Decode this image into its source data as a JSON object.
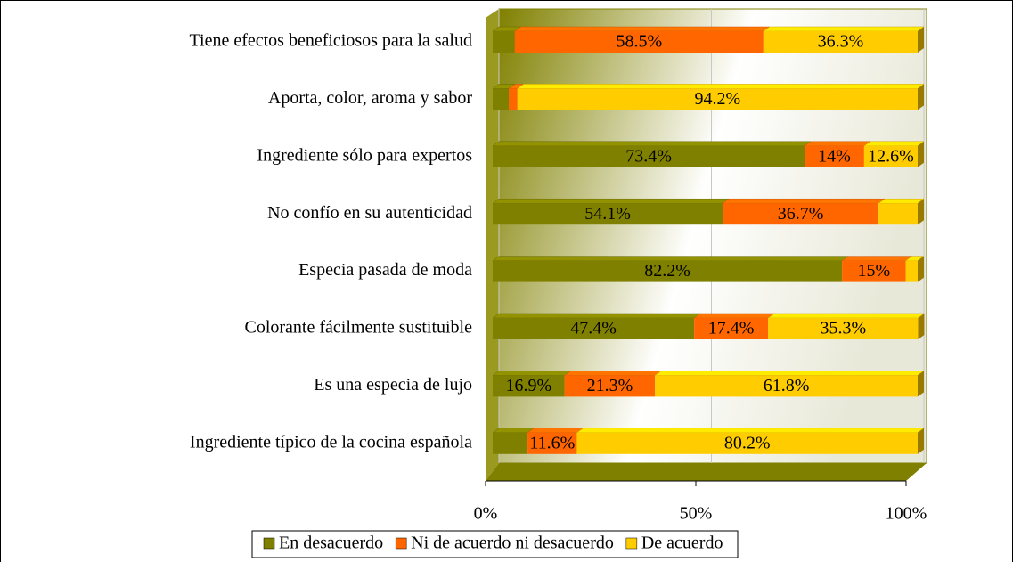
{
  "chart_data": {
    "type": "bar",
    "orientation": "horizontal",
    "stacked": true,
    "categories": [
      "Tiene efectos beneficiosos para la salud",
      "Aporta, color, aroma y sabor",
      "Ingrediente sólo para expertos",
      "No confío en su autenticidad",
      "Especia pasada de moda",
      "Colorante fácilmente sustituible",
      "Es una especia de lujo",
      "Ingrediente típico de la cocina española"
    ],
    "series": [
      {
        "name": "En desacuerdo",
        "color": "#808000",
        "values": [
          5.2,
          3.8,
          73.4,
          54.1,
          82.2,
          47.4,
          16.9,
          8.2
        ],
        "value_labels": [
          null,
          null,
          "73.4%",
          "54.1%",
          "82.2%",
          "47.4%",
          "16.9%",
          null
        ]
      },
      {
        "name": "Ni de acuerdo ni desacuerdo",
        "color": "#ff6600",
        "values": [
          58.5,
          2.0,
          14,
          36.7,
          15,
          17.4,
          21.3,
          11.6
        ],
        "value_labels": [
          "58.5%",
          null,
          "14%",
          "36.7%",
          "15%",
          "17.4%",
          "21.3%",
          "11.6%"
        ]
      },
      {
        "name": "De acuerdo",
        "color": "#ffcc00",
        "values": [
          36.3,
          94.2,
          12.6,
          9.2,
          2.8,
          35.3,
          61.8,
          80.2
        ],
        "value_labels": [
          "36.3%",
          "94.2%",
          "12.6%",
          null,
          null,
          "35.3%",
          "61.8%",
          "80.2%"
        ]
      }
    ],
    "xlim": [
      0,
      100
    ],
    "xticks": [
      {
        "value": 0,
        "label": "0%"
      },
      {
        "value": 50,
        "label": "50%"
      },
      {
        "value": 100,
        "label": "100%"
      }
    ],
    "grid": true,
    "legend": "bottom"
  }
}
